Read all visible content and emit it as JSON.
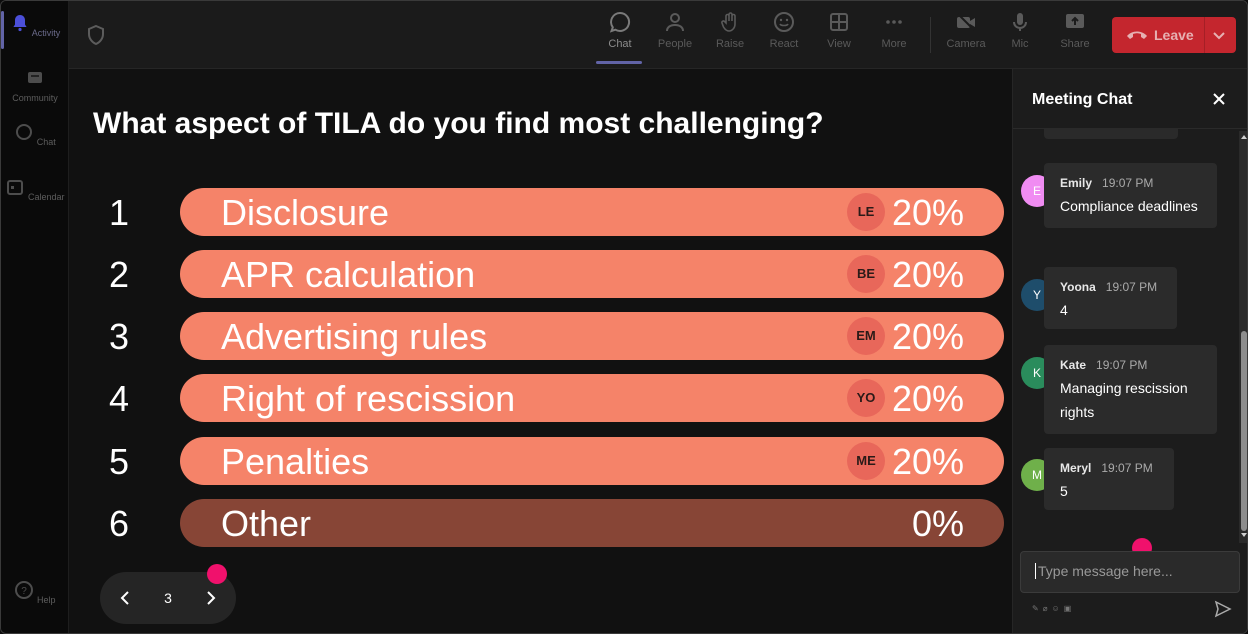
{
  "rail": {
    "items": [
      {
        "label": "Activity",
        "icon": "bell-icon",
        "active": true
      },
      {
        "label": "Community",
        "icon": "community-icon"
      },
      {
        "label": "Chat",
        "icon": "chat-icon"
      },
      {
        "label": "Calendar",
        "icon": "calendar-icon"
      }
    ],
    "help_label": "Help"
  },
  "toolbar": {
    "chat_label": "Chat",
    "people_label": "People",
    "raise_label": "Raise",
    "react_label": "React",
    "view_label": "View",
    "more_label": "More",
    "camera_label": "Camera",
    "mic_label": "Mic",
    "share_label": "Share",
    "leave_label": "Leave"
  },
  "poll": {
    "question": "What aspect of TILA do you find most challenging?",
    "options": [
      {
        "num": "1",
        "label": "Disclosure",
        "initials": "LE",
        "percent_text": "20%",
        "percent": 20
      },
      {
        "num": "2",
        "label": "APR calculation",
        "initials": "BE",
        "percent_text": "20%",
        "percent": 20
      },
      {
        "num": "3",
        "label": "Advertising rules",
        "initials": "EM",
        "percent_text": "20%",
        "percent": 20
      },
      {
        "num": "4",
        "label": "Right of rescission",
        "initials": "YO",
        "percent_text": "20%",
        "percent": 20
      },
      {
        "num": "5",
        "label": "Penalties",
        "initials": "ME",
        "percent_text": "20%",
        "percent": 20
      },
      {
        "num": "6",
        "label": "Other",
        "initials": "",
        "percent_text": "0%",
        "percent": 0
      }
    ],
    "page": "3"
  },
  "chat": {
    "title": "Meeting Chat",
    "messages": [
      {
        "initial": "E",
        "name": "Emily",
        "time": "19:07 PM",
        "text": "Compliance deadlines",
        "color": "#f08cf2"
      },
      {
        "initial": "Y",
        "name": "Yoona",
        "time": "19:07 PM",
        "text": "4",
        "color": "#1e4d6b"
      },
      {
        "initial": "K",
        "name": "Kate",
        "time": "19:07 PM",
        "text": "Managing rescission rights",
        "color": "#2a8c5c"
      },
      {
        "initial": "M",
        "name": "Meryl",
        "time": "19:07 PM",
        "text": "5",
        "color": "#6fb04a"
      }
    ],
    "composer_placeholder": "Type message here..."
  },
  "colors": {
    "accent": "#6264a7",
    "leave": "#c4262e",
    "bar": "#f58369",
    "bar_zero": "#874536",
    "pointer": "#f0116c"
  }
}
